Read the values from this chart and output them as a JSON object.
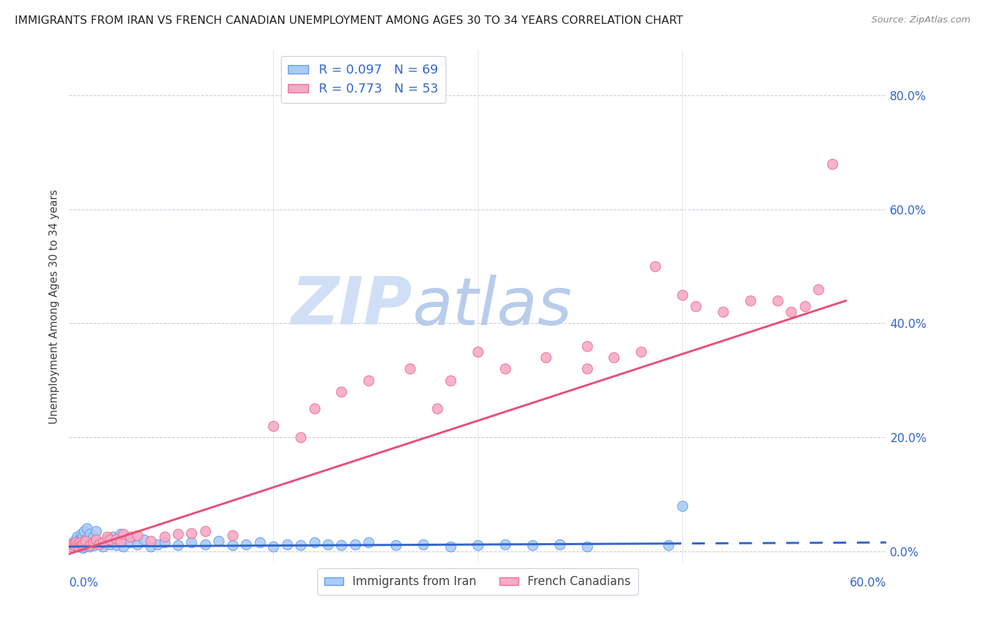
{
  "title": "IMMIGRANTS FROM IRAN VS FRENCH CANADIAN UNEMPLOYMENT AMONG AGES 30 TO 34 YEARS CORRELATION CHART",
  "source": "Source: ZipAtlas.com",
  "ylabel": "Unemployment Among Ages 30 to 34 years",
  "ytick_labels": [
    "0.0%",
    "20.0%",
    "40.0%",
    "60.0%",
    "80.0%"
  ],
  "ytick_values": [
    0.0,
    0.2,
    0.4,
    0.6,
    0.8
  ],
  "xlim": [
    0.0,
    0.6
  ],
  "ylim": [
    -0.02,
    0.88
  ],
  "legend_label1": "R = 0.097   N = 69",
  "legend_label2": "R = 0.773   N = 53",
  "legend_color1": "#aaccf8",
  "legend_color2": "#f8aac8",
  "trendline1_color": "#3366cc",
  "trendline2_color": "#e8507a",
  "scatter1_color": "#aaccf8",
  "scatter1_edge": "#6699ee",
  "scatter2_color": "#f8aac8",
  "scatter2_edge": "#e87090",
  "watermark_zip": "ZIP",
  "watermark_atlas": "atlas",
  "watermark_color_zip": "#c8d8f0",
  "watermark_color_atlas": "#b0c8e8",
  "grid_color": "#ccccdd",
  "background_color": "#ffffff",
  "title_color": "#202020",
  "source_color": "#888888",
  "axis_label_color": "#3366cc",
  "ylabel_color": "#404040",
  "blue_scatter_x": [
    0.002,
    0.003,
    0.004,
    0.005,
    0.005,
    0.006,
    0.006,
    0.007,
    0.007,
    0.008,
    0.008,
    0.009,
    0.009,
    0.01,
    0.01,
    0.01,
    0.011,
    0.011,
    0.012,
    0.012,
    0.013,
    0.013,
    0.014,
    0.015,
    0.015,
    0.016,
    0.017,
    0.018,
    0.019,
    0.02,
    0.022,
    0.025,
    0.028,
    0.03,
    0.032,
    0.035,
    0.038,
    0.04,
    0.045,
    0.05,
    0.055,
    0.06,
    0.065,
    0.07,
    0.08,
    0.09,
    0.1,
    0.11,
    0.12,
    0.13,
    0.14,
    0.15,
    0.16,
    0.17,
    0.18,
    0.19,
    0.2,
    0.21,
    0.22,
    0.24,
    0.26,
    0.28,
    0.3,
    0.32,
    0.34,
    0.36,
    0.38,
    0.44,
    0.45
  ],
  "blue_scatter_y": [
    0.01,
    0.015,
    0.008,
    0.012,
    0.02,
    0.01,
    0.025,
    0.008,
    0.018,
    0.012,
    0.022,
    0.01,
    0.03,
    0.005,
    0.015,
    0.025,
    0.008,
    0.035,
    0.012,
    0.02,
    0.01,
    0.04,
    0.015,
    0.008,
    0.03,
    0.012,
    0.018,
    0.025,
    0.01,
    0.035,
    0.015,
    0.008,
    0.02,
    0.012,
    0.025,
    0.01,
    0.03,
    0.008,
    0.015,
    0.012,
    0.02,
    0.008,
    0.012,
    0.015,
    0.01,
    0.015,
    0.012,
    0.018,
    0.01,
    0.012,
    0.015,
    0.008,
    0.012,
    0.01,
    0.015,
    0.012,
    0.01,
    0.012,
    0.015,
    0.01,
    0.012,
    0.008,
    0.01,
    0.012,
    0.01,
    0.012,
    0.008,
    0.01,
    0.08
  ],
  "pink_scatter_x": [
    0.002,
    0.003,
    0.004,
    0.005,
    0.006,
    0.007,
    0.008,
    0.009,
    0.01,
    0.012,
    0.015,
    0.018,
    0.02,
    0.022,
    0.025,
    0.028,
    0.03,
    0.035,
    0.038,
    0.04,
    0.045,
    0.05,
    0.06,
    0.07,
    0.08,
    0.09,
    0.1,
    0.12,
    0.15,
    0.17,
    0.18,
    0.2,
    0.22,
    0.25,
    0.27,
    0.28,
    0.3,
    0.32,
    0.35,
    0.38,
    0.38,
    0.4,
    0.42,
    0.43,
    0.45,
    0.46,
    0.48,
    0.5,
    0.52,
    0.53,
    0.54,
    0.55,
    0.56
  ],
  "pink_scatter_y": [
    0.008,
    0.012,
    0.01,
    0.015,
    0.012,
    0.008,
    0.015,
    0.01,
    0.012,
    0.018,
    0.01,
    0.015,
    0.02,
    0.012,
    0.015,
    0.025,
    0.02,
    0.022,
    0.018,
    0.03,
    0.025,
    0.028,
    0.018,
    0.025,
    0.03,
    0.032,
    0.035,
    0.028,
    0.22,
    0.2,
    0.25,
    0.28,
    0.3,
    0.32,
    0.25,
    0.3,
    0.35,
    0.32,
    0.34,
    0.32,
    0.36,
    0.34,
    0.35,
    0.5,
    0.45,
    0.43,
    0.42,
    0.44,
    0.44,
    0.42,
    0.43,
    0.46,
    0.68
  ],
  "trendline1_slope": 0.012,
  "trendline1_intercept": 0.008,
  "trendline2_slope": 0.78,
  "trendline2_intercept": -0.005,
  "trendline1_solid_end": 0.44,
  "trendline1_dash_end": 0.6,
  "trendline2_end": 0.57
}
